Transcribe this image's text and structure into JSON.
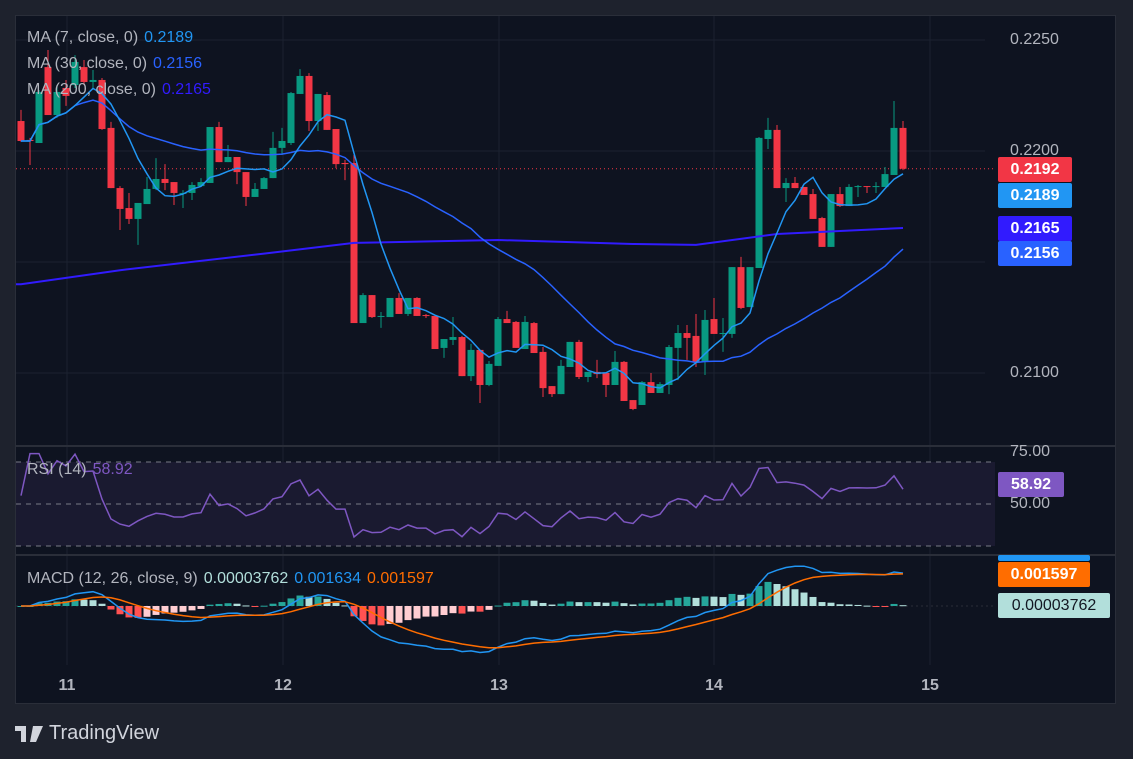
{
  "chart_data": {
    "type": "candlestick",
    "ylim": [
      0.2067,
      0.2276
    ],
    "price_ticks": [
      "0.2250",
      "0.2200",
      "0.2100"
    ],
    "time_ticks": [
      "11",
      "12",
      "13",
      "14",
      "15"
    ],
    "candles_ohlc": [
      [
        0.22135,
        0.22185,
        0.22041,
        0.22045
      ],
      [
        0.2205,
        0.22059,
        0.21937,
        0.22045
      ],
      [
        0.22036,
        0.22275,
        0.22036,
        0.22266
      ],
      [
        0.22378,
        0.22455,
        0.22162,
        0.22162
      ],
      [
        0.22162,
        0.22297,
        0.22149,
        0.22266
      ],
      [
        0.22284,
        0.2232,
        0.22203,
        0.22248
      ],
      [
        0.22297,
        0.22432,
        0.22284,
        0.22401
      ],
      [
        0.22378,
        0.2241,
        0.22297,
        0.22311
      ],
      [
        0.22311,
        0.22365,
        0.22284,
        0.2232
      ],
      [
        0.2232,
        0.22329,
        0.22095,
        0.22099
      ],
      [
        0.22104,
        0.22131,
        0.21833,
        0.21833
      ],
      [
        0.21833,
        0.21842,
        0.21644,
        0.21739
      ],
      [
        0.21743,
        0.21811,
        0.21671,
        0.21694
      ],
      [
        0.21694,
        0.21766,
        0.21577,
        0.21766
      ],
      [
        0.21761,
        0.21883,
        0.21761,
        0.21829
      ],
      [
        0.21829,
        0.21968,
        0.21824,
        0.21874
      ],
      [
        0.21874,
        0.21941,
        0.21824,
        0.21856
      ],
      [
        0.2186,
        0.2186,
        0.21757,
        0.21811
      ],
      [
        0.21811,
        0.21824,
        0.21743,
        0.21811
      ],
      [
        0.21811,
        0.2186,
        0.21779,
        0.21847
      ],
      [
        0.21842,
        0.21878,
        0.21842,
        0.2186
      ],
      [
        0.21856,
        0.22108,
        0.21856,
        0.22108
      ],
      [
        0.22108,
        0.22131,
        0.2195,
        0.2195
      ],
      [
        0.2195,
        0.22027,
        0.2195,
        0.21973
      ],
      [
        0.21973,
        0.21973,
        0.21851,
        0.21905
      ],
      [
        0.21905,
        0.21905,
        0.21752,
        0.21793
      ],
      [
        0.21793,
        0.21856,
        0.21793,
        0.21829
      ],
      [
        0.21829,
        0.21883,
        0.21829,
        0.21878
      ],
      [
        0.21878,
        0.22086,
        0.21878,
        0.22014
      ],
      [
        0.22014,
        0.22104,
        0.21982,
        0.22045
      ],
      [
        0.22036,
        0.22266,
        0.22027,
        0.22261
      ],
      [
        0.22257,
        0.22369,
        0.22257,
        0.22338
      ],
      [
        0.22338,
        0.22351,
        0.2209,
        0.22135
      ],
      [
        0.22135,
        0.22257,
        0.2209,
        0.22257
      ],
      [
        0.22252,
        0.22266,
        0.22095,
        0.22095
      ],
      [
        0.22099,
        0.22099,
        0.21923,
        0.21941
      ],
      [
        0.21946,
        0.2196,
        0.21869,
        0.21941
      ],
      [
        0.21946,
        0.21982,
        0.21225,
        0.21225
      ],
      [
        0.21225,
        0.2136,
        0.21225,
        0.21351
      ],
      [
        0.21351,
        0.21351,
        0.21248,
        0.21252
      ],
      [
        0.21257,
        0.21275,
        0.21203,
        0.21257
      ],
      [
        0.21252,
        0.21338,
        0.21252,
        0.21338
      ],
      [
        0.21338,
        0.2136,
        0.21266,
        0.21266
      ],
      [
        0.21266,
        0.21338,
        0.21257,
        0.21338
      ],
      [
        0.21338,
        0.21342,
        0.21257,
        0.21257
      ],
      [
        0.21261,
        0.21266,
        0.21248,
        0.21257
      ],
      [
        0.21257,
        0.21257,
        0.21108,
        0.21108
      ],
      [
        0.21113,
        0.21153,
        0.21068,
        0.21153
      ],
      [
        0.21149,
        0.21252,
        0.21126,
        0.21162
      ],
      [
        0.21162,
        0.21167,
        0.20986,
        0.20986
      ],
      [
        0.20986,
        0.21131,
        0.20964,
        0.21104
      ],
      [
        0.21104,
        0.21104,
        0.20865,
        0.20946
      ],
      [
        0.20946,
        0.21054,
        0.20941,
        0.21041
      ],
      [
        0.21032,
        0.21252,
        0.21032,
        0.21243
      ],
      [
        0.21243,
        0.2128,
        0.21225,
        0.21225
      ],
      [
        0.2123,
        0.21234,
        0.21113,
        0.21113
      ],
      [
        0.21108,
        0.21257,
        0.21108,
        0.2123
      ],
      [
        0.21225,
        0.2123,
        0.2109,
        0.2109
      ],
      [
        0.21095,
        0.21117,
        0.20892,
        0.20932
      ],
      [
        0.20941,
        0.20941,
        0.20892,
        0.20905
      ],
      [
        0.20905,
        0.21059,
        0.20905,
        0.21032
      ],
      [
        0.21027,
        0.2114,
        0.21027,
        0.2114
      ],
      [
        0.2114,
        0.21149,
        0.20973,
        0.20982
      ],
      [
        0.20982,
        0.21005,
        0.20959,
        0.21005
      ],
      [
        0.21005,
        0.21059,
        0.20977,
        0.20995
      ],
      [
        0.21,
        0.21,
        0.20892,
        0.20946
      ],
      [
        0.20946,
        0.21099,
        0.20946,
        0.2105
      ],
      [
        0.2105,
        0.21054,
        0.20874,
        0.20874
      ],
      [
        0.20878,
        0.20878,
        0.20833,
        0.20838
      ],
      [
        0.20856,
        0.20964,
        0.20856,
        0.20959
      ],
      [
        0.20959,
        0.21,
        0.2091,
        0.2091
      ],
      [
        0.2091,
        0.20959,
        0.2091,
        0.2095
      ],
      [
        0.20946,
        0.21126,
        0.20905,
        0.21117
      ],
      [
        0.21113,
        0.21216,
        0.20968,
        0.2118
      ],
      [
        0.2118,
        0.21216,
        0.21059,
        0.21158
      ],
      [
        0.21167,
        0.21266,
        0.21027,
        0.2105
      ],
      [
        0.2105,
        0.21284,
        0.20991,
        0.21239
      ],
      [
        0.21243,
        0.21338,
        0.21176,
        0.21176
      ],
      [
        0.21176,
        0.21248,
        0.21095,
        0.2118
      ],
      [
        0.21176,
        0.21477,
        0.21158,
        0.21477
      ],
      [
        0.21477,
        0.21523,
        0.21288,
        0.21293
      ],
      [
        0.21297,
        0.21477,
        0.21297,
        0.21477
      ],
      [
        0.21473,
        0.22063,
        0.21473,
        0.22059
      ],
      [
        0.22054,
        0.22149,
        0.22009,
        0.22095
      ],
      [
        0.22095,
        0.22117,
        0.21833,
        0.21833
      ],
      [
        0.21833,
        0.21878,
        0.2177,
        0.21856
      ],
      [
        0.21856,
        0.21883,
        0.21833,
        0.21833
      ],
      [
        0.21838,
        0.21838,
        0.21802,
        0.21802
      ],
      [
        0.21806,
        0.21829,
        0.21694,
        0.21694
      ],
      [
        0.21698,
        0.21703,
        0.21568,
        0.21568
      ],
      [
        0.21568,
        0.21806,
        0.21568,
        0.21806
      ],
      [
        0.21806,
        0.21838,
        0.21748,
        0.21752
      ],
      [
        0.21752,
        0.21851,
        0.21752,
        0.21838
      ],
      [
        0.21838,
        0.21847,
        0.21793,
        0.21842
      ],
      [
        0.21842,
        0.21842,
        0.21811,
        0.21838
      ],
      [
        0.21838,
        0.2186,
        0.21811,
        0.21842
      ],
      [
        0.21838,
        0.21928,
        0.21838,
        0.21896
      ],
      [
        0.21892,
        0.22225,
        0.21892,
        0.22104
      ],
      [
        0.22104,
        0.22135,
        0.21914,
        0.2192
      ]
    ],
    "ma200_points": [
      [
        0,
        0.214
      ],
      [
        11,
        0.21463
      ],
      [
        27,
        0.21538
      ],
      [
        37,
        0.21586
      ],
      [
        53,
        0.21599
      ],
      [
        68,
        0.21581
      ],
      [
        75,
        0.21577
      ],
      [
        84,
        0.21626
      ],
      [
        98,
        0.21653
      ]
    ],
    "rsi_levels": [
      75,
      50,
      25
    ],
    "rsi_ticks": [
      "75.00",
      "50.00"
    ]
  },
  "legend": {
    "ma7_label": "MA (7, close, 0)",
    "ma7_value": "0.2189",
    "ma30_label": "MA (30, close, 0)",
    "ma30_value": "0.2156",
    "ma200_label": "MA (200, close, 0)",
    "ma200_value": "0.2165",
    "rsi_label": "RSI (14)",
    "rsi_value": "58.92",
    "macd_label": "MACD (12, 26, close, 9)",
    "macd_hist": "0.00003762",
    "macd_line": "0.001634",
    "macd_signal": "0.001597"
  },
  "price_tags": {
    "last": "0.2192",
    "ma7": "0.2189",
    "ma200": "0.2165",
    "ma30": "0.2156",
    "rsi": "58.92",
    "macd_signal": "0.001597",
    "macd_hist": "0.00003762"
  },
  "colors": {
    "up": "#089981",
    "down": "#f23645",
    "ma7": "#2196f3",
    "ma30": "#2962ff",
    "ma200": "#311bfe",
    "rsi": "#7e57c2",
    "macd": "#2196f3",
    "signal": "#ff6d00"
  },
  "brand": {
    "name": "TradingView",
    "logo_icon": "tradingview-logo-icon"
  }
}
